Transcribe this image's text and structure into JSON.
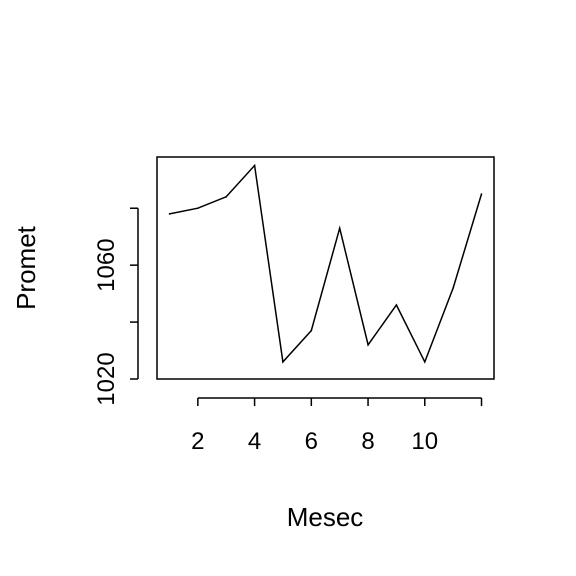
{
  "chart_data": {
    "type": "line",
    "title": "",
    "xlabel": "Mesec",
    "ylabel": "Promet",
    "x": [
      1,
      2,
      3,
      4,
      5,
      6,
      7,
      8,
      9,
      10,
      11,
      12
    ],
    "values": [
      1078,
      1080,
      1084,
      1095,
      1026,
      1037,
      1073,
      1032,
      1046,
      1026,
      1052,
      1085
    ],
    "xlim": [
      0.56,
      12.44
    ],
    "ylim": [
      1020,
      1098
    ],
    "xticks": [
      2,
      4,
      6,
      8,
      10,
      12
    ],
    "xtick_labels": [
      "2",
      "4",
      "6",
      "8",
      "10",
      ""
    ],
    "yticks": [
      1020,
      1040,
      1060,
      1080
    ],
    "ytick_labels": [
      "1020",
      "",
      "1060",
      ""
    ],
    "grid": false,
    "line_color": "#000000"
  }
}
